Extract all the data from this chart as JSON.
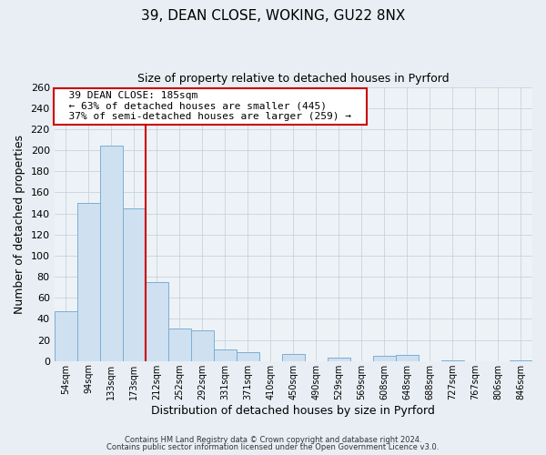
{
  "title": "39, DEAN CLOSE, WOKING, GU22 8NX",
  "subtitle": "Size of property relative to detached houses in Pyrford",
  "xlabel": "Distribution of detached houses by size in Pyrford",
  "ylabel": "Number of detached properties",
  "bar_labels": [
    "54sqm",
    "94sqm",
    "133sqm",
    "173sqm",
    "212sqm",
    "252sqm",
    "292sqm",
    "331sqm",
    "371sqm",
    "410sqm",
    "450sqm",
    "490sqm",
    "529sqm",
    "569sqm",
    "608sqm",
    "648sqm",
    "688sqm",
    "727sqm",
    "767sqm",
    "806sqm",
    "846sqm"
  ],
  "bar_values": [
    47,
    150,
    204,
    145,
    75,
    31,
    29,
    11,
    8,
    0,
    7,
    0,
    3,
    0,
    5,
    6,
    0,
    1,
    0,
    0,
    1
  ],
  "bar_color": "#cfe0f0",
  "bar_edge_color": "#7bafd4",
  "vline_x": 3.5,
  "vline_color": "#cc0000",
  "ylim": [
    0,
    260
  ],
  "yticks": [
    0,
    20,
    40,
    60,
    80,
    100,
    120,
    140,
    160,
    180,
    200,
    220,
    240,
    260
  ],
  "annotation_title": "39 DEAN CLOSE: 185sqm",
  "annotation_line1": "← 63% of detached houses are smaller (445)",
  "annotation_line2": "37% of semi-detached houses are larger (259) →",
  "annotation_box_color": "#ffffff",
  "annotation_box_edge": "#cc0000",
  "footer1": "Contains HM Land Registry data © Crown copyright and database right 2024.",
  "footer2": "Contains public sector information licensed under the Open Government Licence v3.0.",
  "bg_color": "#e8eef4",
  "plot_bg_color": "#edf2f7",
  "grid_color": "#c0cdd8"
}
